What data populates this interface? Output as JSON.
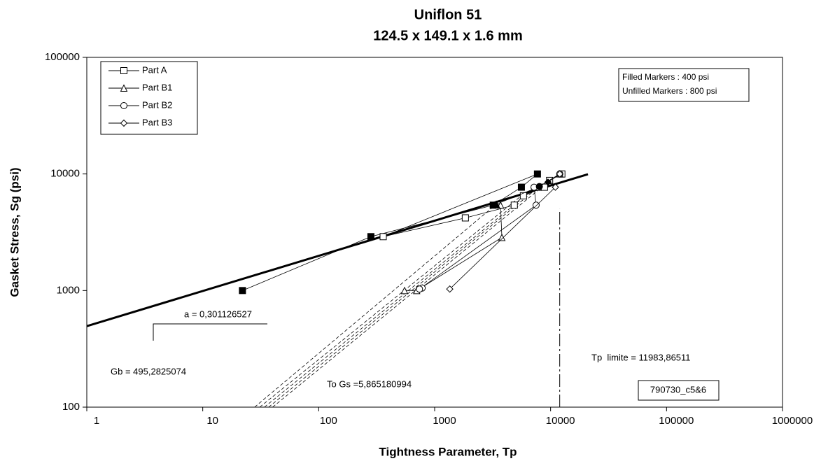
{
  "chart_data": {
    "type": "scatter",
    "title": "Uniflon 51",
    "subtitle": "124.5 x 149.1 x 1.6 mm",
    "x_label": "Tightness Parameter, Tp",
    "y_label": "Gasket Stress, Sg (psi)",
    "log_x": true,
    "log_y": true,
    "xlim": [
      1,
      1000000
    ],
    "ylim": [
      100,
      100000
    ],
    "xticks": [
      1,
      10,
      100,
      1000,
      10000,
      100000,
      1000000
    ],
    "yticks": [
      100,
      1000,
      10000,
      100000
    ],
    "legend": "upper left",
    "series": [
      {
        "name": "Part A",
        "marker": "square",
        "color": "#000000",
        "x": [
          22,
          282,
          3200,
          5600,
          7700,
          360,
          1840,
          4860,
          5830,
          8850,
          9800,
          12500
        ],
        "values": [
          1000,
          2900,
          5400,
          7700,
          10000,
          2900,
          4200,
          5400,
          6500,
          7700,
          8800,
          10000
        ],
        "filled": [
          true,
          true,
          true,
          true,
          true,
          false,
          false,
          false,
          false,
          false,
          false,
          false
        ]
      },
      {
        "name": "Part B1",
        "marker": "triangle",
        "color": "#000000",
        "x": [
          550,
          700,
          3800,
          3700,
          3400,
          7800,
          12000
        ],
        "values": [
          1000,
          1000,
          2850,
          5400,
          5500,
          7700,
          10000
        ],
        "filled": [
          false,
          false,
          false,
          false,
          true,
          false,
          false
        ]
      },
      {
        "name": "Part B2",
        "marker": "circle",
        "color": "#000000",
        "x": [
          780,
          740,
          7500,
          7200,
          8000,
          12000
        ],
        "values": [
          1050,
          1030,
          5400,
          7700,
          7800,
          10000
        ],
        "filled": [
          false,
          false,
          false,
          false,
          true,
          false
        ]
      },
      {
        "name": "Part B3",
        "marker": "diamond",
        "color": "#000000",
        "x": [
          1350,
          11000,
          9500,
          12000
        ],
        "values": [
          1030,
          7700,
          8500,
          10000
        ],
        "filled": [
          false,
          false,
          true,
          false
        ]
      }
    ],
    "fit_line": {
      "x": [
        1,
        21000
      ],
      "y": [
        495,
        9950
      ]
    },
    "dashed_lines": [
      {
        "x": [
          28,
          3400
        ],
        "y": [
          100,
          5500
        ]
      },
      {
        "x": [
          31,
          5600
        ],
        "y": [
          100,
          6500
        ]
      },
      {
        "x": [
          34,
          7500
        ],
        "y": [
          100,
          7700
        ]
      },
      {
        "x": [
          37,
          8000
        ],
        "y": [
          100,
          7800
        ]
      },
      {
        "x": [
          40,
          9500
        ],
        "y": [
          100,
          8500
        ]
      }
    ],
    "tp_limit_line": {
      "x": [
        11983.86511,
        11983.86511
      ],
      "y": [
        100,
        5000
      ]
    },
    "annotations": {
      "a": "a = 0,301126527",
      "gb": "Gb = 495,2825074",
      "to_gs": "To Gs =5,865180994",
      "tp_limite": "Tp  limite = 11983,86511",
      "sample_id": "790730_c5&6",
      "filled_note": "Filled Markers : 400 psi",
      "unfilled_note": "Unfilled Markers : 800 psi"
    }
  }
}
